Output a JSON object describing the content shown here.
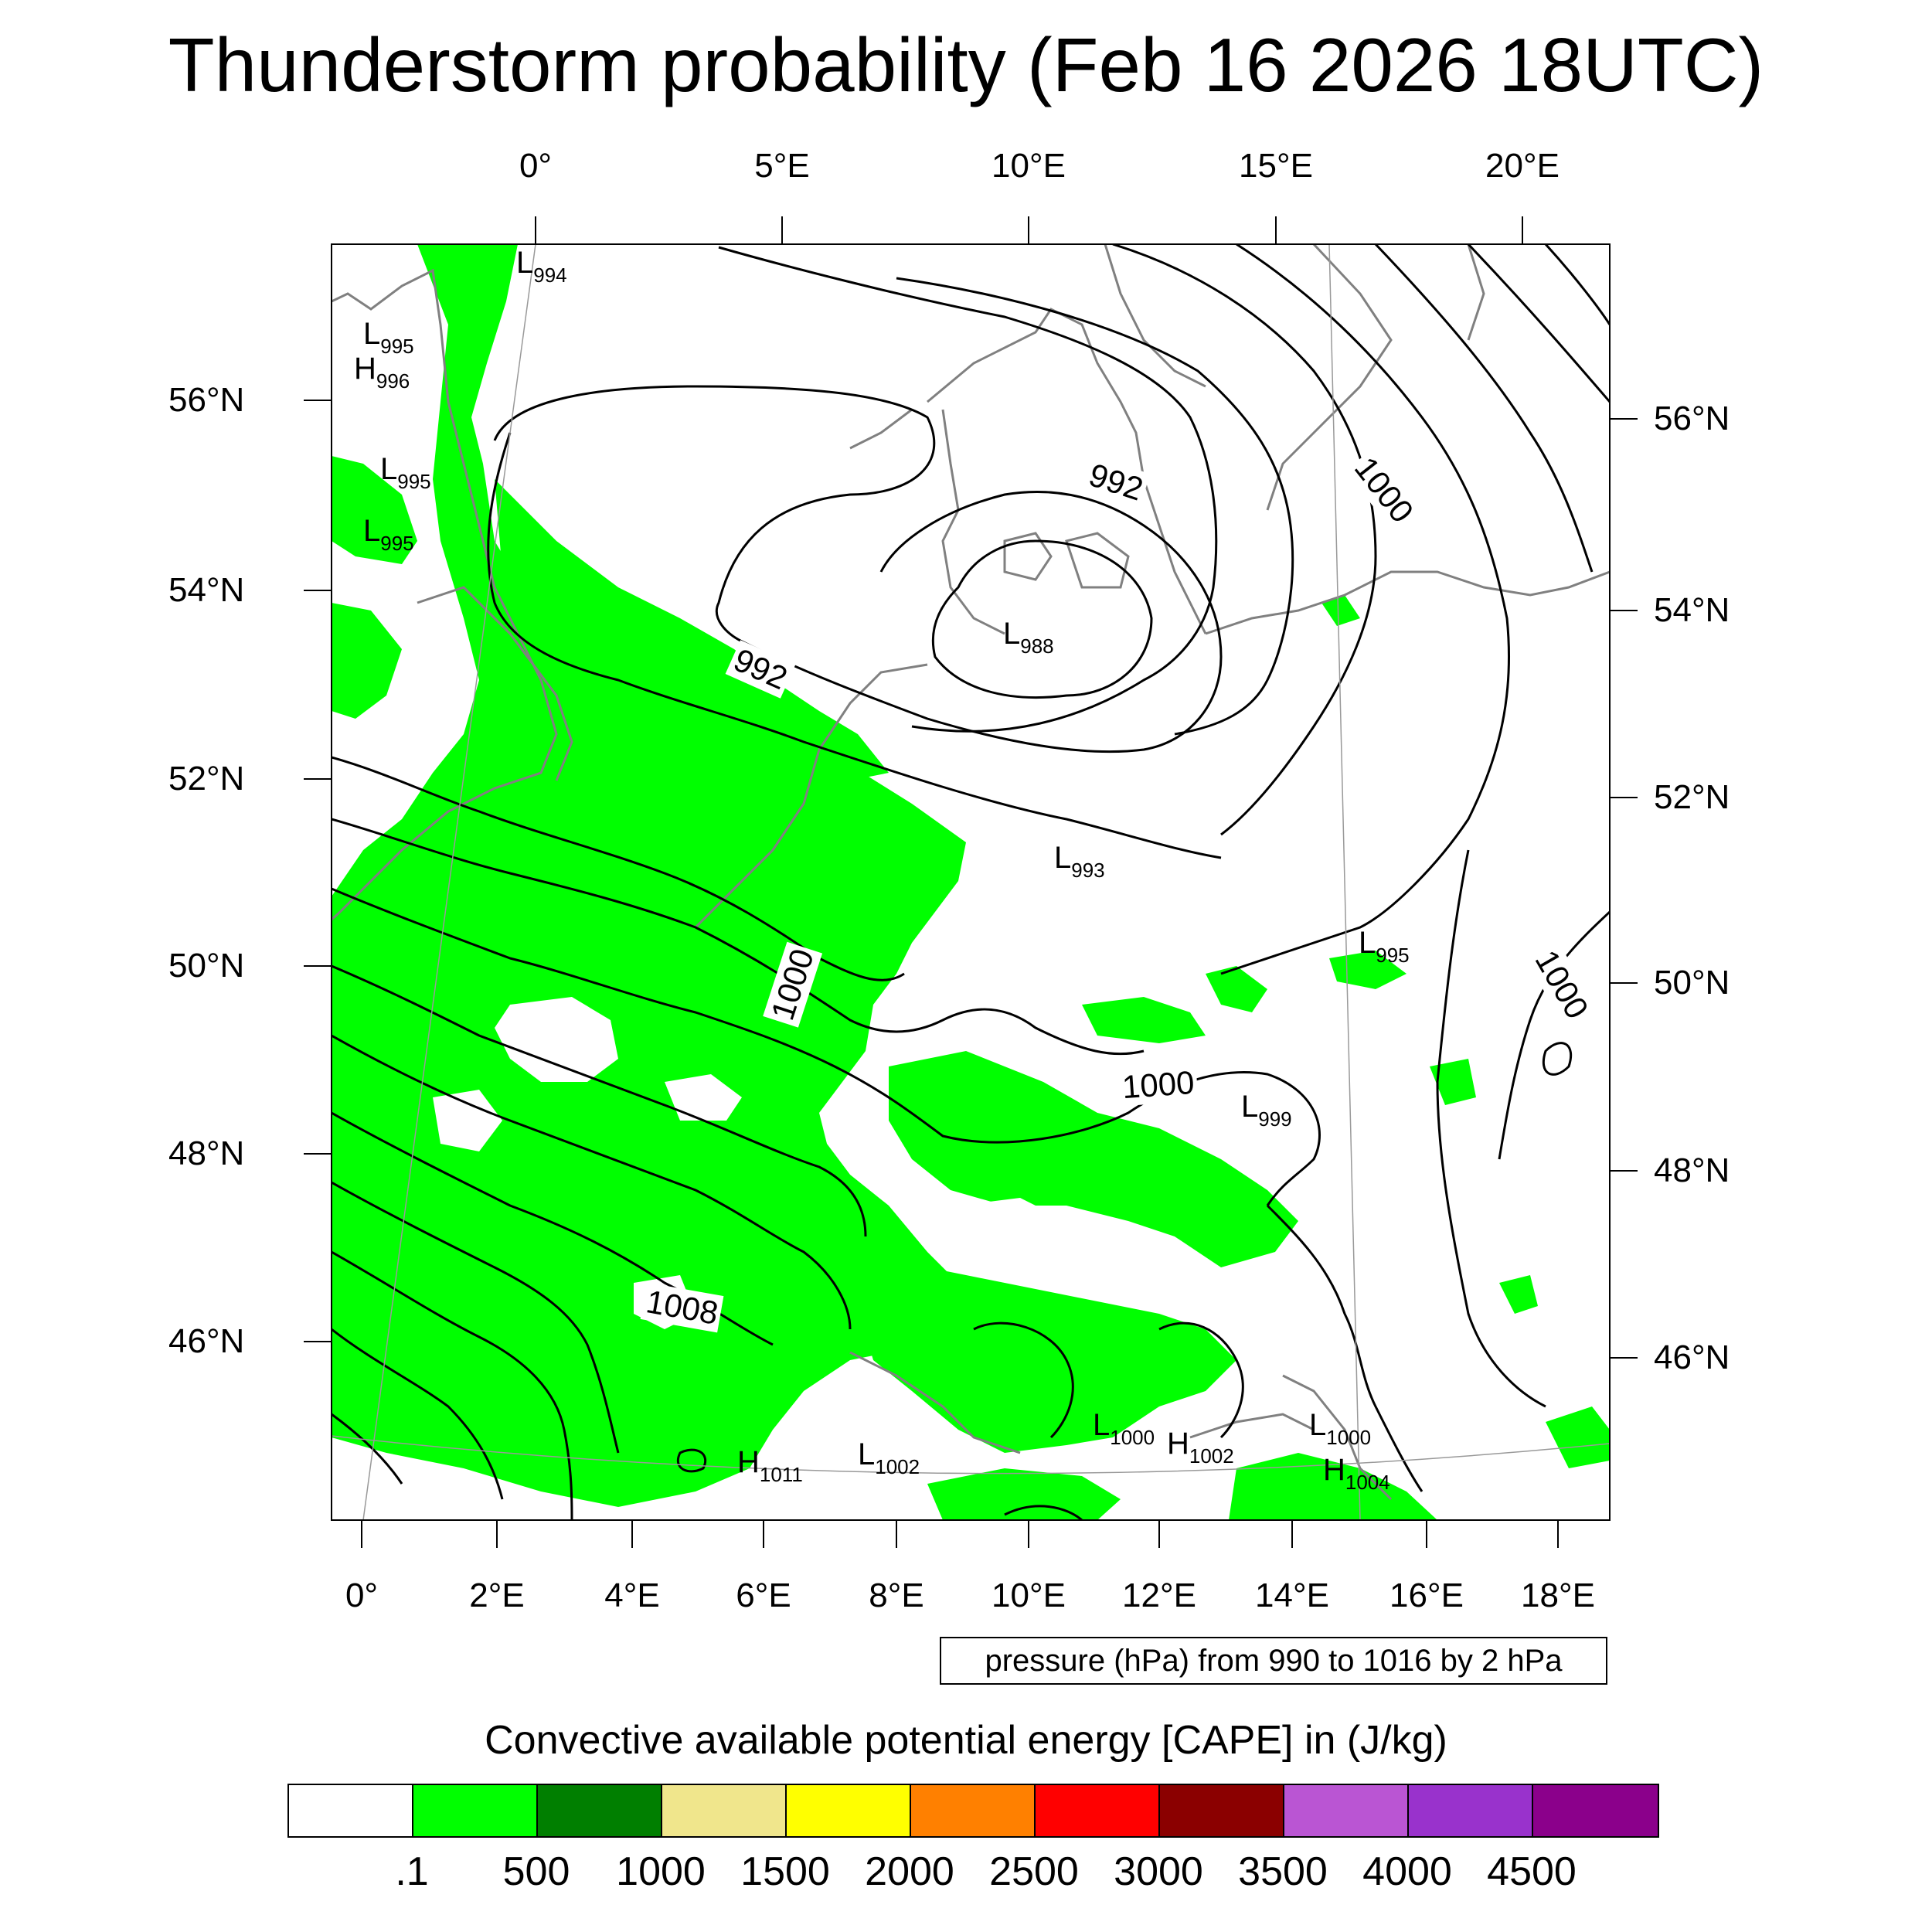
{
  "title": "Thunderstorm probability (Feb 16 2026 18UTC)",
  "top_lon_labels": [
    "0°",
    "5°E",
    "10°E",
    "15°E",
    "20°E"
  ],
  "bottom_lon_labels": [
    "0°",
    "2°E",
    "4°E",
    "6°E",
    "8°E",
    "10°E",
    "12°E",
    "14°E",
    "16°E",
    "18°E"
  ],
  "left_lat_labels": [
    "56°N",
    "54°N",
    "52°N",
    "50°N",
    "48°N",
    "46°N"
  ],
  "right_lat_labels": [
    "56°N",
    "54°N",
    "52°N",
    "50°N",
    "48°N",
    "46°N"
  ],
  "contour_labels": [
    "992",
    "992",
    "1000",
    "1000",
    "1000",
    "1000",
    "1008"
  ],
  "pressure_systems": [
    {
      "type": "L",
      "value": "994"
    },
    {
      "type": "L",
      "value": "995"
    },
    {
      "type": "H",
      "value": "996"
    },
    {
      "type": "L",
      "value": "995"
    },
    {
      "type": "L",
      "value": "995"
    },
    {
      "type": "L",
      "value": "988"
    },
    {
      "type": "L",
      "value": "993"
    },
    {
      "type": "L",
      "value": "995"
    },
    {
      "type": "L",
      "value": "999"
    },
    {
      "type": "L",
      "value": "1000"
    },
    {
      "type": "H",
      "value": "1002"
    },
    {
      "type": "L",
      "value": "1000"
    },
    {
      "type": "H",
      "value": "1004"
    },
    {
      "type": "H",
      "value": "1011"
    },
    {
      "type": "L",
      "value": "1002"
    }
  ],
  "pressure_note": "pressure (hPa) from 990 to 1016 by 2 hPa",
  "colorbar": {
    "title": "Convective available potential energy [CAPE] in (J/kg)",
    "colors": [
      "#ffffff",
      "#00ff00",
      "#007f00",
      "#f0e68c",
      "#ffff00",
      "#ff8000",
      "#ff0000",
      "#8b0000",
      "#ba55d3",
      "#9932cc",
      "#8b008b"
    ],
    "labels": [
      ".1",
      "500",
      "1000",
      "1500",
      "2000",
      "2500",
      "3000",
      "3500",
      "4000",
      "4500"
    ]
  },
  "cape_fill_color": "#00ff00"
}
